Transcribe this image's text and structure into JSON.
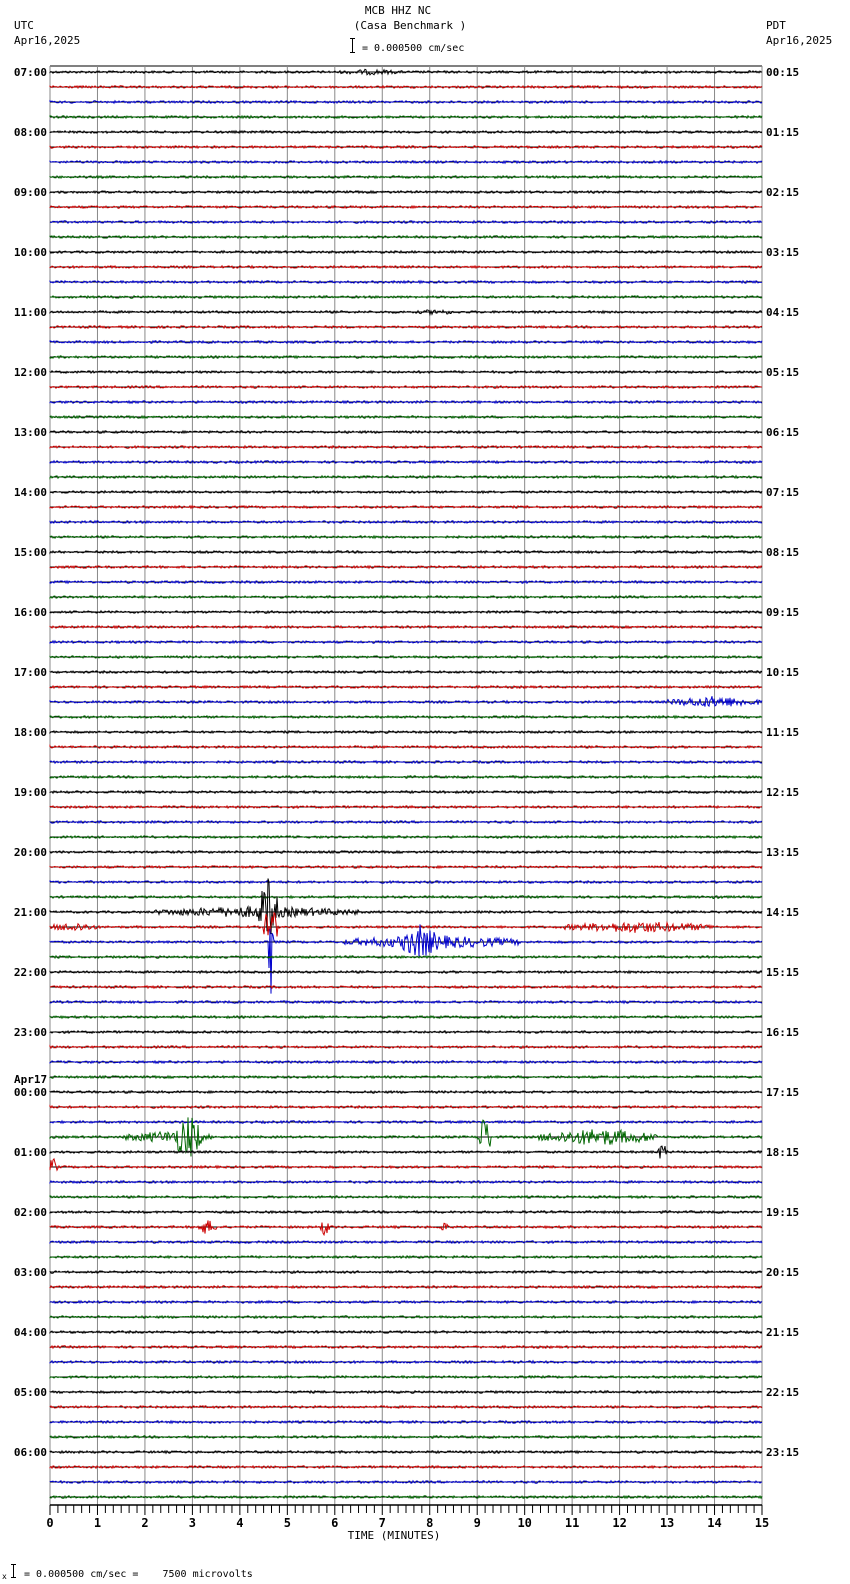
{
  "header": {
    "station": "MCB HHZ NC",
    "site": "(Casa Benchmark )",
    "left_tz": "UTC",
    "left_date": "Apr16,2025",
    "right_tz": "PDT",
    "right_date": "Apr16,2025",
    "scale_text": "= 0.000500 cm/sec"
  },
  "footer": {
    "scale_prefix": "x",
    "scale_text": "= 0.000500 cm/sec =    7500 microvolts"
  },
  "chart_data": {
    "type": "line",
    "title": "MCB HHZ NC (Casa Benchmark )",
    "xlabel": "TIME (MINUTES)",
    "ylabel": "",
    "xlim": [
      0,
      15
    ],
    "x_ticks": [
      "0",
      "1",
      "2",
      "3",
      "4",
      "5",
      "6",
      "7",
      "8",
      "9",
      "10",
      "11",
      "12",
      "13",
      "14",
      "15"
    ],
    "grid": true,
    "trace_count": 96,
    "minutes_per_trace": 15,
    "trace_colors": [
      "#000000",
      "#cc0000",
      "#0000cc",
      "#006600"
    ],
    "left_labels": [
      {
        "row": 0,
        "text": "07:00"
      },
      {
        "row": 4,
        "text": "08:00"
      },
      {
        "row": 8,
        "text": "09:00"
      },
      {
        "row": 12,
        "text": "10:00"
      },
      {
        "row": 16,
        "text": "11:00"
      },
      {
        "row": 20,
        "text": "12:00"
      },
      {
        "row": 24,
        "text": "13:00"
      },
      {
        "row": 28,
        "text": "14:00"
      },
      {
        "row": 32,
        "text": "15:00"
      },
      {
        "row": 36,
        "text": "16:00"
      },
      {
        "row": 40,
        "text": "17:00"
      },
      {
        "row": 44,
        "text": "18:00"
      },
      {
        "row": 48,
        "text": "19:00"
      },
      {
        "row": 52,
        "text": "20:00"
      },
      {
        "row": 56,
        "text": "21:00"
      },
      {
        "row": 60,
        "text": "22:00"
      },
      {
        "row": 64,
        "text": "23:00"
      },
      {
        "row": 68,
        "text": "00:00",
        "date": "Apr17"
      },
      {
        "row": 72,
        "text": "01:00"
      },
      {
        "row": 76,
        "text": "02:00"
      },
      {
        "row": 80,
        "text": "03:00"
      },
      {
        "row": 84,
        "text": "04:00"
      },
      {
        "row": 88,
        "text": "05:00"
      },
      {
        "row": 92,
        "text": "06:00"
      }
    ],
    "right_labels": [
      {
        "row": 0,
        "text": "00:15"
      },
      {
        "row": 4,
        "text": "01:15"
      },
      {
        "row": 8,
        "text": "02:15"
      },
      {
        "row": 12,
        "text": "03:15"
      },
      {
        "row": 16,
        "text": "04:15"
      },
      {
        "row": 20,
        "text": "05:15"
      },
      {
        "row": 24,
        "text": "06:15"
      },
      {
        "row": 28,
        "text": "07:15"
      },
      {
        "row": 32,
        "text": "08:15"
      },
      {
        "row": 36,
        "text": "09:15"
      },
      {
        "row": 40,
        "text": "10:15"
      },
      {
        "row": 44,
        "text": "11:15"
      },
      {
        "row": 48,
        "text": "12:15"
      },
      {
        "row": 52,
        "text": "13:15"
      },
      {
        "row": 56,
        "text": "14:15"
      },
      {
        "row": 60,
        "text": "15:15"
      },
      {
        "row": 64,
        "text": "16:15"
      },
      {
        "row": 68,
        "text": "17:15"
      },
      {
        "row": 72,
        "text": "18:15"
      },
      {
        "row": 76,
        "text": "19:15"
      },
      {
        "row": 80,
        "text": "20:15"
      },
      {
        "row": 84,
        "text": "21:15"
      },
      {
        "row": 88,
        "text": "22:15"
      },
      {
        "row": 92,
        "text": "23:15"
      }
    ],
    "events": [
      {
        "row": 0,
        "start_min": 6.0,
        "end_min": 7.5,
        "amp": 3
      },
      {
        "row": 16,
        "start_min": 7.7,
        "end_min": 8.6,
        "amp": 3
      },
      {
        "row": 42,
        "start_min": 13.0,
        "end_min": 15.0,
        "amp": 6
      },
      {
        "row": 55,
        "start_min": 13.9,
        "end_min": 14.2,
        "amp": 3
      },
      {
        "row": 56,
        "start_min": 2.2,
        "end_min": 6.5,
        "amp": 6
      },
      {
        "row": 56,
        "start_min": 4.4,
        "end_min": 4.8,
        "amp": 36
      },
      {
        "row": 57,
        "start_min": 0.0,
        "end_min": 1.0,
        "amp": 5
      },
      {
        "row": 57,
        "start_min": 4.5,
        "end_min": 4.8,
        "amp": 22
      },
      {
        "row": 57,
        "start_min": 10.8,
        "end_min": 14.0,
        "amp": 6
      },
      {
        "row": 58,
        "start_min": 6.2,
        "end_min": 9.9,
        "amp": 7
      },
      {
        "row": 58,
        "start_min": 7.4,
        "end_min": 8.2,
        "amp": 18
      },
      {
        "row": 58,
        "start_min": 4.6,
        "end_min": 4.7,
        "amp": 60
      },
      {
        "row": 71,
        "start_min": 1.5,
        "end_min": 3.4,
        "amp": 6
      },
      {
        "row": 71,
        "start_min": 2.6,
        "end_min": 3.2,
        "amp": 24
      },
      {
        "row": 71,
        "start_min": 9.0,
        "end_min": 9.3,
        "amp": 22
      },
      {
        "row": 71,
        "start_min": 10.3,
        "end_min": 12.8,
        "amp": 9
      },
      {
        "row": 72,
        "start_min": 12.8,
        "end_min": 13.0,
        "amp": 10
      },
      {
        "row": 73,
        "start_min": 0.0,
        "end_min": 0.15,
        "amp": 12
      },
      {
        "row": 77,
        "start_min": 3.1,
        "end_min": 3.5,
        "amp": 8
      },
      {
        "row": 77,
        "start_min": 5.7,
        "end_min": 5.9,
        "amp": 10
      },
      {
        "row": 77,
        "start_min": 8.2,
        "end_min": 8.4,
        "amp": 5
      }
    ]
  }
}
